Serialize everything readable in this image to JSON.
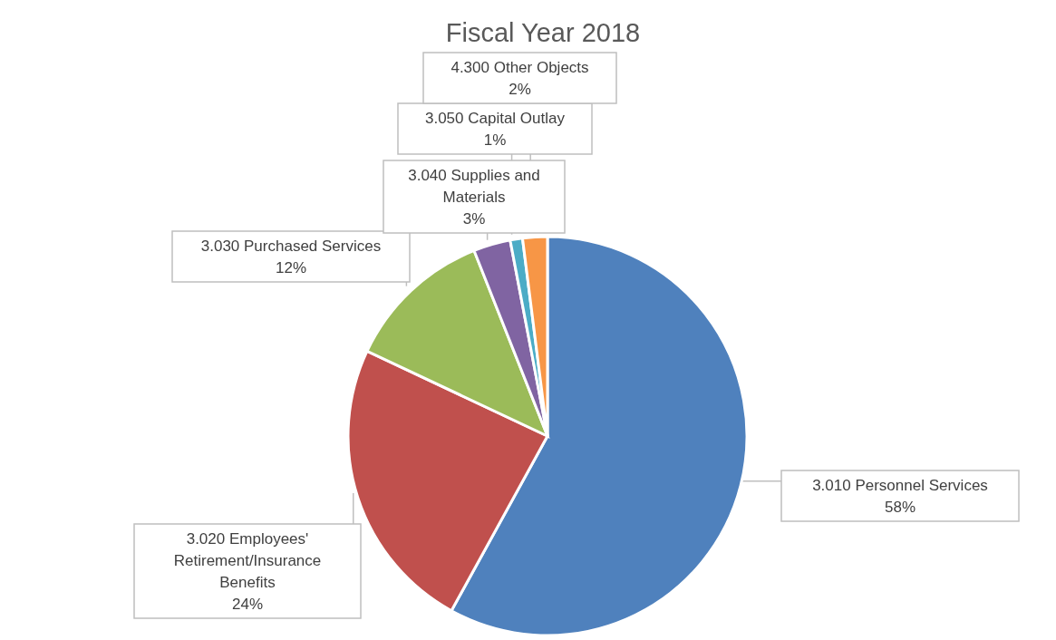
{
  "chart_data": {
    "type": "pie",
    "title": "Fiscal Year 2018",
    "categories": [
      "3.010 Personnel Services",
      "3.020 Employees' Retirement/Insurance Benefits",
      "3.030 Purchased Services",
      "3.040 Supplies and Materials",
      "3.050 Capital Outlay",
      "4.300 Other Objects"
    ],
    "values": [
      58,
      24,
      12,
      3,
      1,
      2
    ],
    "value_labels": [
      "58%",
      "24%",
      "12%",
      "3%",
      "1%",
      "2%"
    ],
    "colors": [
      "#4f81bd",
      "#c0504d",
      "#9bbb59",
      "#8064a2",
      "#4bacc6",
      "#f79646"
    ]
  }
}
